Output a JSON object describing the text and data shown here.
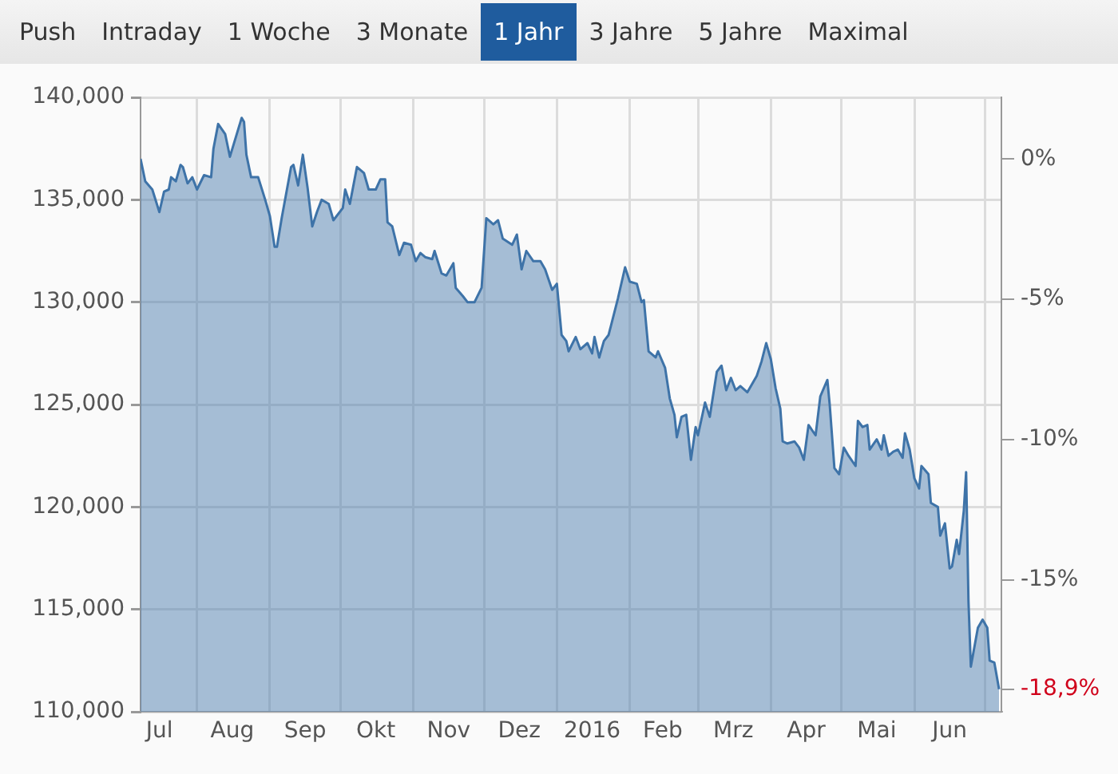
{
  "chart_data": {
    "type": "area",
    "annotations": [
      "Push",
      "Intraday",
      "1 Woche",
      "3 Monate",
      "1 Jahr",
      "3 Jahre",
      "5 Jahre",
      "Maximal"
    ],
    "x": [
      "2015-07-08",
      "2015-07-10",
      "2015-07-13",
      "2015-07-16",
      "2015-07-18",
      "2015-07-20",
      "2015-07-21",
      "2015-07-23",
      "2015-07-25",
      "2015-07-26",
      "2015-07-28",
      "2015-07-30",
      "2015-08-01",
      "2015-08-04",
      "2015-08-07",
      "2015-08-08",
      "2015-08-10",
      "2015-08-13",
      "2015-08-15",
      "2015-08-20",
      "2015-08-21",
      "2015-08-22",
      "2015-08-24",
      "2015-08-27",
      "2015-08-30",
      "2015-09-01",
      "2015-09-03",
      "2015-09-04",
      "2015-09-06",
      "2015-09-10",
      "2015-09-11",
      "2015-09-13",
      "2015-09-15",
      "2015-09-17",
      "2015-09-19",
      "2015-09-21",
      "2015-09-23",
      "2015-09-26",
      "2015-09-28",
      "2015-10-02",
      "2015-10-03",
      "2015-10-05",
      "2015-10-08",
      "2015-10-11",
      "2015-10-13",
      "2015-10-16",
      "2015-10-18",
      "2015-10-20",
      "2015-10-21",
      "2015-10-23",
      "2015-10-26",
      "2015-10-28",
      "2015-10-31",
      "2015-11-02",
      "2015-11-04",
      "2015-11-06",
      "2015-11-09",
      "2015-11-10",
      "2015-11-13",
      "2015-11-15",
      "2015-11-18",
      "2015-11-19",
      "2015-11-22",
      "2015-11-24",
      "2015-11-27",
      "2015-11-30",
      "2015-12-02",
      "2015-12-05",
      "2015-12-07",
      "2015-12-09",
      "2015-12-13",
      "2015-12-15",
      "2015-12-17",
      "2015-12-19",
      "2015-12-22",
      "2015-12-25",
      "2015-12-27",
      "2015-12-30",
      "2016-01-01",
      "2016-01-03",
      "2016-01-05",
      "2016-01-06",
      "2016-01-09",
      "2016-01-11",
      "2016-01-14",
      "2016-01-16",
      "2016-01-17",
      "2016-01-19",
      "2016-01-21",
      "2016-01-23",
      "2016-01-27",
      "2016-01-30",
      "2016-02-01",
      "2016-02-04",
      "2016-02-06",
      "2016-02-07",
      "2016-02-09",
      "2016-02-12",
      "2016-02-13",
      "2016-02-16",
      "2016-02-18",
      "2016-02-20",
      "2016-02-21",
      "2016-02-23",
      "2016-02-25",
      "2016-02-27",
      "2016-02-29",
      "2016-03-01",
      "2016-03-04",
      "2016-03-06",
      "2016-03-09",
      "2016-03-11",
      "2016-03-13",
      "2016-03-15",
      "2016-03-17",
      "2016-03-19",
      "2016-03-22",
      "2016-03-26",
      "2016-03-28",
      "2016-03-30",
      "2016-04-01",
      "2016-04-03",
      "2016-04-05",
      "2016-04-06",
      "2016-04-08",
      "2016-04-11",
      "2016-04-13",
      "2016-04-15",
      "2016-04-17",
      "2016-04-20",
      "2016-04-22",
      "2016-04-25",
      "2016-04-26",
      "2016-04-28",
      "2016-04-30",
      "2016-05-02",
      "2016-05-04",
      "2016-05-07",
      "2016-05-08",
      "2016-05-10",
      "2016-05-12",
      "2016-05-13",
      "2016-05-16",
      "2016-05-18",
      "2016-05-19",
      "2016-05-21",
      "2016-05-23",
      "2016-05-25",
      "2016-05-27",
      "2016-05-28",
      "2016-05-30",
      "2016-06-01",
      "2016-06-03",
      "2016-06-04",
      "2016-06-07",
      "2016-06-08",
      "2016-06-11",
      "2016-06-12",
      "2016-06-14",
      "2016-06-16",
      "2016-06-17",
      "2016-06-19",
      "2016-06-20",
      "2016-06-22",
      "2016-06-23",
      "2016-06-24",
      "2016-06-25",
      "2016-06-28",
      "2016-06-30",
      "2016-07-02",
      "2016-07-03",
      "2016-07-05",
      "2016-07-07"
    ],
    "series": [
      {
        "color": "#3e73a8",
        "values": [
          137000,
          135900,
          135500,
          134400,
          135400,
          135500,
          136100,
          135900,
          136700,
          136600,
          135800,
          136100,
          135500,
          136200,
          136100,
          137500,
          138700,
          138200,
          137100,
          139000,
          138800,
          137200,
          136100,
          136100,
          135000,
          134200,
          132700,
          132700,
          134100,
          136600,
          136700,
          135700,
          137200,
          135600,
          133700,
          134400,
          135000,
          134800,
          134000,
          134600,
          135500,
          134800,
          136600,
          136300,
          135500,
          135500,
          136000,
          136000,
          133900,
          133700,
          132300,
          132900,
          132800,
          132000,
          132400,
          132200,
          132100,
          132500,
          131400,
          131300,
          131900,
          130700,
          130300,
          130000,
          130000,
          130700,
          134100,
          133800,
          134000,
          133100,
          132800,
          133300,
          131600,
          132500,
          132000,
          132000,
          131600,
          130600,
          130900,
          128400,
          128100,
          127600,
          128300,
          127700,
          128000,
          127500,
          128300,
          127300,
          128100,
          128400,
          130200,
          131700,
          131000,
          130900,
          130000,
          130100,
          127600,
          127300,
          127600,
          126800,
          125300,
          124500,
          123400,
          124400,
          124500,
          122300,
          123900,
          123500,
          125100,
          124400,
          126600,
          126900,
          125700,
          126300,
          125700,
          125900,
          125600,
          126400,
          127100,
          128000,
          127200,
          125800,
          124800,
          123200,
          123100,
          123200,
          122900,
          122300,
          124000,
          123500,
          125400,
          126200,
          125000,
          121900,
          121600,
          122900,
          122500,
          122000,
          124200,
          123900,
          124000,
          122800,
          123300,
          122800,
          123500,
          122500,
          122700,
          122800,
          122400,
          123600,
          122800,
          121400,
          120900,
          122000,
          121600,
          120200,
          120000,
          118600,
          119200,
          117000,
          117100,
          118400,
          117700,
          119800,
          121700,
          115400,
          112200,
          114100,
          114500,
          114100,
          112500,
          112400,
          111100
        ]
      }
    ],
    "xlim": [
      "2015-07-08",
      "2016-07-08"
    ],
    "xticks": [
      {
        "value": "2015-07-16",
        "label": "Jul"
      },
      {
        "value": "2015-08-01",
        "label": null
      },
      {
        "value": "2015-08-16",
        "label": "Aug"
      },
      {
        "value": "2015-09-01",
        "label": null
      },
      {
        "value": "2015-09-16",
        "label": "Sep"
      },
      {
        "value": "2015-10-01",
        "label": null
      },
      {
        "value": "2015-10-16",
        "label": "Okt"
      },
      {
        "value": "2015-11-01",
        "label": null
      },
      {
        "value": "2015-11-16",
        "label": "Nov"
      },
      {
        "value": "2015-12-01",
        "label": null
      },
      {
        "value": "2015-12-16",
        "label": "Dez"
      },
      {
        "value": "2016-01-01",
        "label": null
      },
      {
        "value": "2016-01-16",
        "label": "2016"
      },
      {
        "value": "2016-02-01",
        "label": null
      },
      {
        "value": "2016-02-15",
        "label": "Feb"
      },
      {
        "value": "2016-03-01",
        "label": null
      },
      {
        "value": "2016-03-16",
        "label": "Mrz"
      },
      {
        "value": "2016-04-01",
        "label": null
      },
      {
        "value": "2016-04-16",
        "label": "Apr"
      },
      {
        "value": "2016-05-01",
        "label": null
      },
      {
        "value": "2016-05-16",
        "label": "Mai"
      },
      {
        "value": "2016-06-01",
        "label": null
      },
      {
        "value": "2016-06-16",
        "label": "Jun"
      },
      {
        "value": "2016-07-01",
        "label": null
      }
    ],
    "ylim": [
      110000,
      140000
    ],
    "yticks": [
      {
        "value": 110000,
        "label": "110,000"
      },
      {
        "value": 115000,
        "label": "115,000"
      },
      {
        "value": 120000,
        "label": "120,000"
      },
      {
        "value": 125000,
        "label": "125,000"
      },
      {
        "value": 130000,
        "label": "130,000"
      },
      {
        "value": 135000,
        "label": "135,000"
      },
      {
        "value": 140000,
        "label": "140,000"
      }
    ],
    "y2lim": [
      -19.7,
      2.2
    ],
    "y2ticks": [
      {
        "value": 0,
        "label": "0%"
      },
      {
        "value": -5,
        "label": "-5%"
      },
      {
        "value": -10,
        "label": "-10%"
      },
      {
        "value": -15,
        "label": "-15%"
      },
      {
        "value": -18.9,
        "label": "-18,9%"
      }
    ],
    "grid": true,
    "legend": false,
    "marker": "none",
    "line_style": "solid"
  }
}
